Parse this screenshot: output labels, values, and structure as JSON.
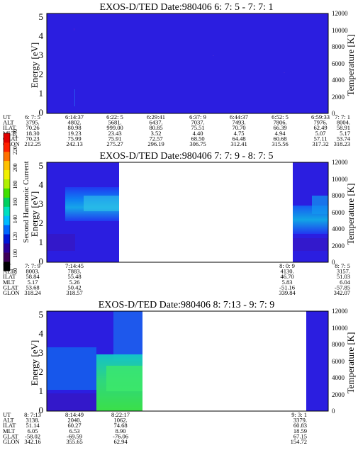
{
  "colorbar": {
    "label": "Second Harmonic Current",
    "ticks": [
      "80",
      "100",
      "120",
      "140",
      "160",
      "180",
      "200",
      "220",
      "240"
    ],
    "colors": [
      "#000000",
      "#3d0058",
      "#2a0098",
      "#0016d8",
      "#0066ff",
      "#00bbff",
      "#00e0c0",
      "#00d060",
      "#40e000",
      "#b0f000",
      "#f0f000",
      "#ffc000",
      "#ff7000",
      "#ff2000",
      "#e00000"
    ]
  },
  "panels": [
    {
      "title": "EXOS-D/TED   Date:980406  6: 7: 5 - 7: 7: 1",
      "ylabel": "Energy [eV]",
      "y2label": "Temperature [K]",
      "yticks": [
        "0",
        "1",
        "2",
        "3",
        "4",
        "5"
      ],
      "y2ticks": [
        "0",
        "2000",
        "4000",
        "6000",
        "8000",
        "10000",
        "12000"
      ],
      "rowlabels": [
        "UT",
        "ALT",
        "ILAT",
        "MLT",
        "GLAT",
        "GLON"
      ],
      "columns": [
        [
          "6: 7: 5",
          "3795.",
          "70.26",
          "18.30",
          "70.23",
          "212.25"
        ],
        [
          "6:14:37",
          "4802.",
          "80.98",
          "19.23",
          "75.99",
          "242.13"
        ],
        [
          "6:22: 5",
          "5681.",
          "999.00",
          "23.43",
          "75.91",
          "275.27"
        ],
        [
          "6:29:41",
          "6437.",
          "80.85",
          "3.52",
          "72.57",
          "296.19"
        ],
        [
          "6:37: 9",
          "7037.",
          "75.51",
          "4.40",
          "68.50",
          "306.75"
        ],
        [
          "6:44:37",
          "7493.",
          "70.70",
          "4.75",
          "64.48",
          "312.41"
        ],
        [
          "6:52: 5",
          "7806.",
          "66.39",
          "4.94",
          "60.68",
          "315.56"
        ],
        [
          "6:59:33",
          "7976.",
          "62.49",
          "5.07",
          "57.11",
          "317.32"
        ],
        [
          "7: 7: 1",
          "8004.",
          "58.91",
          "5.17",
          "53.74",
          "318.23"
        ]
      ]
    },
    {
      "title": "EXOS-D/TED   Date:980406  7: 7: 9 - 8: 7: 5",
      "ylabel": "Energy [eV]",
      "y2label": "Temperature [K]",
      "yticks": [
        "0",
        "1",
        "2",
        "3",
        "4",
        "5"
      ],
      "y2ticks": [
        "0",
        "2000",
        "4000",
        "6000",
        "8000",
        "10000",
        "12000"
      ],
      "rowlabels": [
        "UT",
        "ALT",
        "ILAT",
        "MLT",
        "GLAT",
        "GLON"
      ],
      "columns": [
        [
          "7: 7: 9",
          "8003.",
          "58.84",
          "5.17",
          "53.68",
          "318.24"
        ],
        [
          "7:14:45",
          "7883.",
          "55.48",
          "5.26",
          "50.42",
          "318.57"
        ],
        [
          "8: 0: 9",
          "4130.",
          "46.70",
          "5.83",
          "-51.16",
          "339.84"
        ],
        [
          "8: 7: 5",
          "3157.",
          "51.03",
          "6.04",
          "-57.85",
          "342.07"
        ]
      ]
    },
    {
      "title": "EXOS-D/TED   Date:980406  8: 7:13 - 9: 7: 9",
      "ylabel": "Energy [eV]",
      "y2label": "Temperature [K]",
      "yticks": [
        "0",
        "1",
        "2",
        "3",
        "4",
        "5"
      ],
      "y2ticks": [
        "0",
        "2000",
        "4000",
        "6000",
        "8000",
        "10000",
        "12000"
      ],
      "rowlabels": [
        "UT",
        "ALT",
        "ILAT",
        "MLT",
        "GLAT",
        "GLON"
      ],
      "columns": [
        [
          "8: 7:13",
          "3138.",
          "51.14",
          "6.05",
          "-58.02",
          "342.16"
        ],
        [
          "8:14:49",
          "2040.",
          "60.27",
          "6.53",
          "-69.59",
          "355.65"
        ],
        [
          "8:22:17",
          "1062.",
          "74.68",
          "8.90",
          "-76.06",
          "62.94"
        ],
        [
          "9: 3: 1",
          "3379.",
          "60.83",
          "18.59",
          "67.15",
          "154.72"
        ]
      ]
    }
  ],
  "chart_data": [
    {
      "type": "heatmap",
      "title": "EXOS-D/TED   Date:980406  6: 7: 5 - 7: 7: 1",
      "xlabel": "UT",
      "ylabel": "Energy [eV]",
      "y2label": "Temperature [K]",
      "ylim": [
        0,
        5.2
      ],
      "y2lim": [
        0,
        12000
      ],
      "x": [
        "6: 7: 5",
        "6:14:37",
        "6:22: 5",
        "6:29:41",
        "6:37: 9",
        "6:44:37",
        "6:52: 5",
        "6:59:33",
        "7: 7: 1"
      ],
      "data_segments": [
        [
          "6: 7: 5",
          "7: 7: 1"
        ]
      ],
      "colorbar_range": [
        80,
        240
      ],
      "dominant_value": 120
    },
    {
      "type": "heatmap",
      "title": "EXOS-D/TED   Date:980406  7: 7: 9 - 8: 7: 5",
      "xlabel": "UT",
      "ylabel": "Energy [eV]",
      "y2label": "Temperature [K]",
      "ylim": [
        0,
        5.2
      ],
      "y2lim": [
        0,
        12000
      ],
      "x": [
        "7: 7: 9",
        "7:14:45",
        "8: 0: 9",
        "8: 7: 5"
      ],
      "data_segments": [
        [
          "7: 7: 9",
          "7:14:45"
        ],
        [
          "8: 0: 9",
          "8: 7: 5"
        ]
      ],
      "colorbar_range": [
        80,
        240
      ],
      "enhanced_band_ev": [
        2,
        3.6
      ],
      "enhanced_value": 160
    },
    {
      "type": "heatmap",
      "title": "EXOS-D/TED   Date:980406  8: 7:13 - 9: 7: 9",
      "xlabel": "UT",
      "ylabel": "Energy [eV]",
      "y2label": "Temperature [K]",
      "ylim": [
        0,
        5.2
      ],
      "y2lim": [
        0,
        12000
      ],
      "x": [
        "8: 7:13",
        "8:14:49",
        "8:22:17",
        "9: 3: 1"
      ],
      "data_segments": [
        [
          "8: 7:13",
          "8:22:17"
        ],
        [
          "9: 3: 1",
          "9: 7: 9"
        ]
      ],
      "colorbar_range": [
        80,
        240
      ],
      "enhanced_band_ev": [
        0,
        3
      ],
      "enhanced_value": 190
    }
  ]
}
